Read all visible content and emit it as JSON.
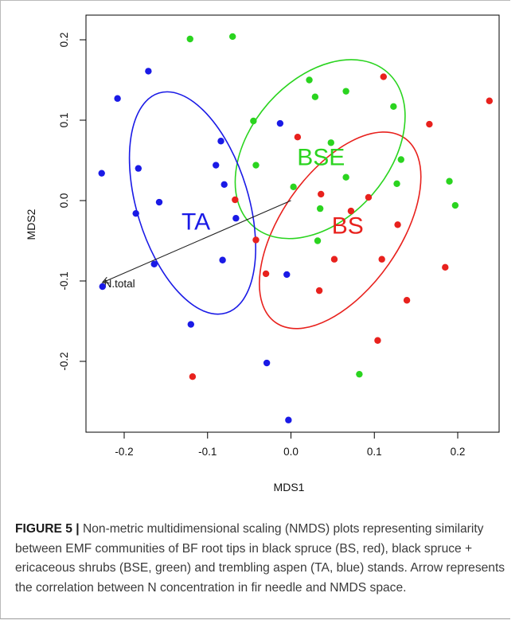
{
  "chart_data": {
    "type": "scatter",
    "xlabel": "MDS1",
    "ylabel": "MDS2",
    "xlim": [
      -0.24,
      0.24
    ],
    "ylim": [
      -0.29,
      0.22
    ],
    "x_ticks": [
      -0.2,
      -0.1,
      0.0,
      0.1,
      0.2
    ],
    "y_ticks": [
      -0.2,
      -0.1,
      0.0,
      0.1,
      0.2
    ],
    "x_tick_labels": [
      "-0.2",
      "-0.1",
      "0.0",
      "0.1",
      "0.2"
    ],
    "y_tick_labels": [
      "-0.2",
      "-0.1",
      "0.0",
      "0.1",
      "0.2"
    ],
    "grid": false,
    "series": [
      {
        "label": "BS",
        "color": "#e8211d",
        "points": [
          [
            0.111,
            0.154
          ],
          [
            0.238,
            0.124
          ],
          [
            0.166,
            0.095
          ],
          [
            0.008,
            0.079
          ],
          [
            0.036,
            0.008
          ],
          [
            -0.067,
            0.001
          ],
          [
            0.093,
            0.004
          ],
          [
            0.072,
            -0.013
          ],
          [
            0.128,
            -0.03
          ],
          [
            -0.042,
            -0.049
          ],
          [
            0.052,
            -0.073
          ],
          [
            0.109,
            -0.073
          ],
          [
            0.185,
            -0.083
          ],
          [
            -0.03,
            -0.091
          ],
          [
            0.034,
            -0.112
          ],
          [
            0.139,
            -0.124
          ],
          [
            0.104,
            -0.174
          ],
          [
            -0.118,
            -0.219
          ]
        ],
        "ellipse": {
          "cx": 0.059,
          "cy": -0.037,
          "rx": 0.071,
          "ry": 0.14,
          "rotation_deg": 35
        }
      },
      {
        "label": "BSE",
        "color": "#2ad41f",
        "points": [
          [
            -0.121,
            0.201
          ],
          [
            -0.07,
            0.204
          ],
          [
            0.022,
            0.15
          ],
          [
            0.066,
            0.136
          ],
          [
            0.029,
            0.129
          ],
          [
            0.123,
            0.117
          ],
          [
            -0.045,
            0.099
          ],
          [
            0.048,
            0.072
          ],
          [
            0.132,
            0.051
          ],
          [
            -0.042,
            0.044
          ],
          [
            0.066,
            0.029
          ],
          [
            0.19,
            0.024
          ],
          [
            0.003,
            0.017
          ],
          [
            0.127,
            0.021
          ],
          [
            0.197,
            -0.006
          ],
          [
            0.035,
            -0.01
          ],
          [
            0.032,
            -0.05
          ],
          [
            0.082,
            -0.216
          ]
        ],
        "ellipse": {
          "cx": 0.035,
          "cy": 0.064,
          "rx": 0.083,
          "ry": 0.127,
          "rotation_deg": 41
        }
      },
      {
        "label": "TA",
        "color": "#1a1ae6",
        "points": [
          [
            -0.171,
            0.161
          ],
          [
            -0.208,
            0.127
          ],
          [
            -0.013,
            0.096
          ],
          [
            -0.084,
            0.074
          ],
          [
            -0.09,
            0.044
          ],
          [
            -0.183,
            0.04
          ],
          [
            -0.227,
            0.034
          ],
          [
            -0.08,
            0.02
          ],
          [
            -0.158,
            -0.002
          ],
          [
            -0.066,
            -0.022
          ],
          [
            -0.186,
            -0.016
          ],
          [
            -0.082,
            -0.074
          ],
          [
            -0.164,
            -0.079
          ],
          [
            -0.005,
            -0.092
          ],
          [
            -0.226,
            -0.107
          ],
          [
            -0.12,
            -0.154
          ],
          [
            -0.029,
            -0.202
          ],
          [
            -0.003,
            -0.273
          ]
        ],
        "ellipse": {
          "cx": -0.118,
          "cy": -0.003,
          "rx": 0.067,
          "ry": 0.143,
          "rotation_deg": -17
        }
      }
    ],
    "arrow": {
      "label": "N.total",
      "from": [
        0.0,
        0.0
      ],
      "to": [
        -0.229,
        -0.103
      ]
    }
  },
  "caption": {
    "label": "FIGURE 5 |",
    "text": " Non-metric multidimensional scaling (NMDS) plots representing similarity between EMF communities of BF root tips in black spruce (BS, red), black spruce + ericaceous shrubs (BSE, green) and trembling aspen (TA, blue) stands. Arrow represents the correlation between N concentration in fir needle and NMDS space."
  }
}
